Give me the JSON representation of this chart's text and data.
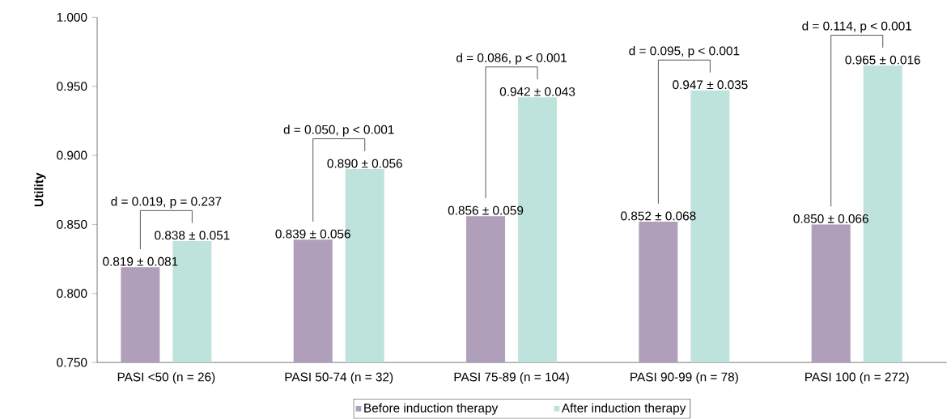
{
  "chart_data": {
    "type": "bar",
    "ylabel": "Utility",
    "categories": [
      "PASI <50 (n = 26)",
      "PASI 50-74 (n = 32)",
      "PASI 75-89 (n = 104)",
      "PASI 90-99 (n = 78)",
      "PASI 100 (n = 272)"
    ],
    "series": [
      {
        "name": "Before induction therapy",
        "color": "#b09fbb",
        "values": [
          0.819,
          0.839,
          0.856,
          0.852,
          0.85
        ],
        "value_labels": [
          "0.819 ± 0.081",
          "0.839 ± 0.056",
          "0.856 ± 0.059",
          "0.852 ± 0.068",
          "0.850 ± 0.066"
        ]
      },
      {
        "name": "After induction therapy",
        "color": "#bde3dc",
        "values": [
          0.838,
          0.89,
          0.942,
          0.947,
          0.965
        ],
        "value_labels": [
          "0.838 ± 0.051",
          "0.890 ± 0.056",
          "0.942 ± 0.043",
          "0.947 ± 0.035",
          "0.965 ± 0.016"
        ]
      }
    ],
    "ylim": [
      0.75,
      1.0
    ],
    "yticks": [
      {
        "value": 0.75,
        "label": "0.750"
      },
      {
        "value": 0.8,
        "label": "0.800"
      },
      {
        "value": 0.85,
        "label": "0.850"
      },
      {
        "value": 0.9,
        "label": "0.900"
      },
      {
        "value": 0.95,
        "label": "0.950"
      },
      {
        "value": 1.0,
        "label": "1.000"
      }
    ],
    "annotations": [
      "d = 0.019, p = 0.237",
      "d = 0.050, p < 0.001",
      "d = 0.086, p < 0.001",
      "d = 0.095, p < 0.001",
      "d = 0.114, p < 0.001"
    ],
    "legend": "bottom"
  }
}
